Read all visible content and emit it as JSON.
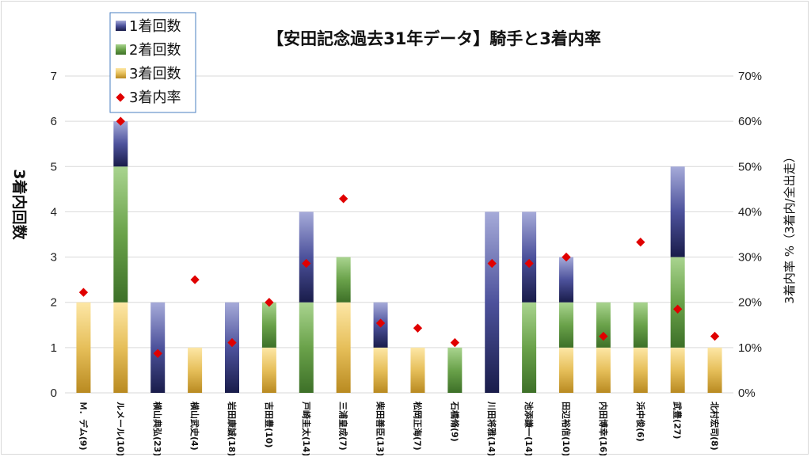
{
  "chart_data": {
    "type": "bar",
    "stacked": true,
    "title": "【安田記念過去31年データ】騎手と3着内率",
    "ylabel": "3着内回数",
    "y2label": "3着内率 %（3着内/全出走）",
    "ylim": [
      0,
      7
    ],
    "y2lim": [
      0,
      70
    ],
    "yticks": [
      "0",
      "1",
      "2",
      "3",
      "4",
      "5",
      "6",
      "7"
    ],
    "y2ticks": [
      "0%",
      "10%",
      "20%",
      "30%",
      "40%",
      "50%",
      "60%",
      "70%"
    ],
    "grid": true,
    "legend_position": "top-left",
    "categories": [
      "Ｍ．デム(9)",
      "ルメール(10)",
      "横山典弘(23)",
      "横山武史(4)",
      "岩田康誠(18)",
      "吉田豊(10)",
      "戸崎圭太(14)",
      "三浦皇成(7)",
      "柴田善臣(13)",
      "松岡正海(7)",
      "石橋脩(9)",
      "川田将雅(14)",
      "池添謙一(14)",
      "田辺裕信(10)",
      "内田博幸(16)",
      "浜中俊(6)",
      "武豊(27)",
      "北村宏司(8)"
    ],
    "series": [
      {
        "name": "1着回数",
        "type": "bar",
        "color": "#2e3580",
        "values": [
          0,
          1,
          2,
          0,
          2,
          0,
          2,
          0,
          1,
          0,
          0,
          4,
          2,
          1,
          0,
          0,
          2,
          0
        ]
      },
      {
        "name": "2着回数",
        "type": "bar",
        "color": "#4e8a34",
        "values": [
          0,
          3,
          0,
          0,
          0,
          1,
          2,
          1,
          0,
          0,
          1,
          0,
          2,
          1,
          1,
          1,
          2,
          0
        ]
      },
      {
        "name": "3着回数",
        "type": "bar",
        "color": "#c9962a",
        "values": [
          2,
          2,
          0,
          1,
          0,
          1,
          0,
          2,
          1,
          1,
          0,
          0,
          0,
          1,
          1,
          1,
          1,
          1
        ]
      },
      {
        "name": "3着内率",
        "type": "scatter",
        "axis": "y2",
        "color": "#e00000",
        "values": [
          22.2,
          60,
          8.7,
          25,
          11.1,
          20,
          28.6,
          42.9,
          15.4,
          14.3,
          11.1,
          28.6,
          28.6,
          30,
          12.5,
          33.3,
          18.5,
          12.5
        ]
      }
    ]
  }
}
